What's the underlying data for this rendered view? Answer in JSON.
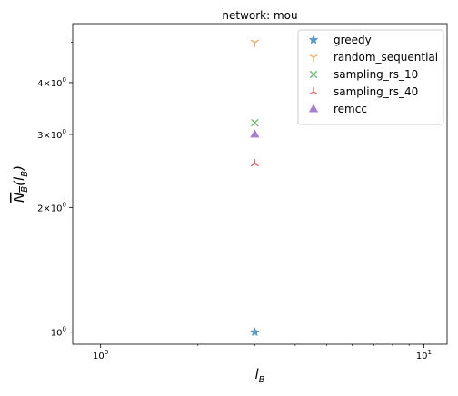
{
  "chart_data": {
    "type": "scatter",
    "title": "network: mou",
    "xlabel": "l_B",
    "ylabel": "N_B(l_B)",
    "xscale": "log",
    "yscale": "log",
    "xlim": [
      0.82,
      11.8
    ],
    "ylim": [
      0.935,
      5.55
    ],
    "x_tick_labels": [
      "10^0",
      "10^1"
    ],
    "y_tick_labels": [
      "10^0",
      "2×10^0",
      "3×10^0",
      "4×10^0"
    ],
    "grid": false,
    "legend_position": "upper right",
    "series": [
      {
        "name": "greedy",
        "marker": "star",
        "color": "#5b9bc8",
        "x": [
          3
        ],
        "y": [
          1.0
        ]
      },
      {
        "name": "random_sequential",
        "marker": "tri_up",
        "color": "#f5a35a",
        "x": [
          3
        ],
        "y": [
          5.0
        ]
      },
      {
        "name": "sampling_rs_10",
        "marker": "x",
        "color": "#72c070",
        "x": [
          3
        ],
        "y": [
          3.2
        ]
      },
      {
        "name": "sampling_rs_40",
        "marker": "tri_down",
        "color": "#e46466",
        "x": [
          3
        ],
        "y": [
          2.55
        ]
      },
      {
        "name": "remcc",
        "marker": "triangle",
        "color": "#a57fd0",
        "x": [
          3
        ],
        "y": [
          3.0
        ]
      }
    ]
  }
}
